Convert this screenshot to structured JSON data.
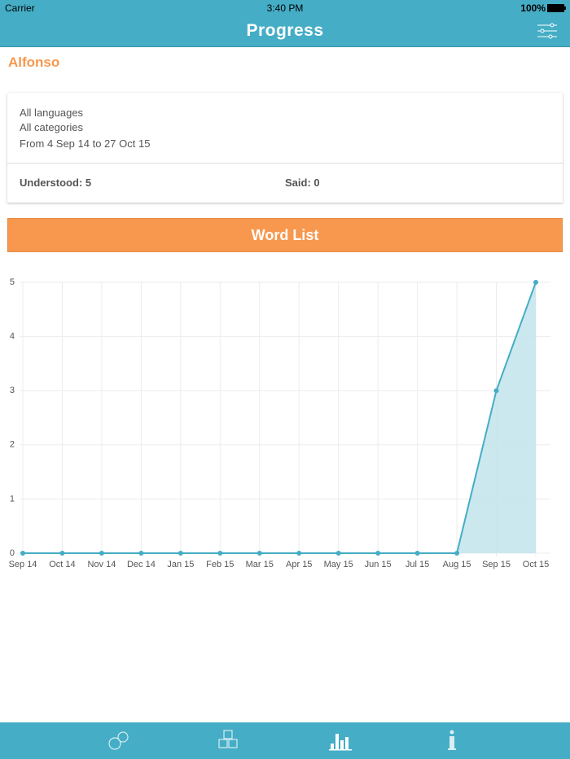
{
  "status_bar": {
    "carrier": "Carrier",
    "time": "3:40 PM",
    "battery": "100%"
  },
  "nav": {
    "title": "Progress"
  },
  "profile": {
    "name": "Alfonso"
  },
  "filters": {
    "languages": "All languages",
    "categories": "All categories",
    "dates": "From 4 Sep 14 to 27 Oct 15"
  },
  "stats": {
    "understood": "Understood: 5",
    "said": "Said: 0"
  },
  "button": {
    "label": "Word List"
  },
  "chart_data": {
    "type": "area",
    "categories": [
      "Sep 14",
      "Oct 14",
      "Nov 14",
      "Dec 14",
      "Jan 15",
      "Feb 15",
      "Mar 15",
      "Apr 15",
      "May 15",
      "Jun 15",
      "Jul 15",
      "Aug 15",
      "Sep 15",
      "Oct 15"
    ],
    "values": [
      0,
      0,
      0,
      0,
      0,
      0,
      0,
      0,
      0,
      0,
      0,
      0,
      3,
      5
    ],
    "color": "#45adc6",
    "fill_color": "#c5e6ec",
    "ylim": [
      0,
      5
    ],
    "yticks": [
      0,
      1,
      2,
      3,
      4,
      5
    ],
    "grid": true
  }
}
